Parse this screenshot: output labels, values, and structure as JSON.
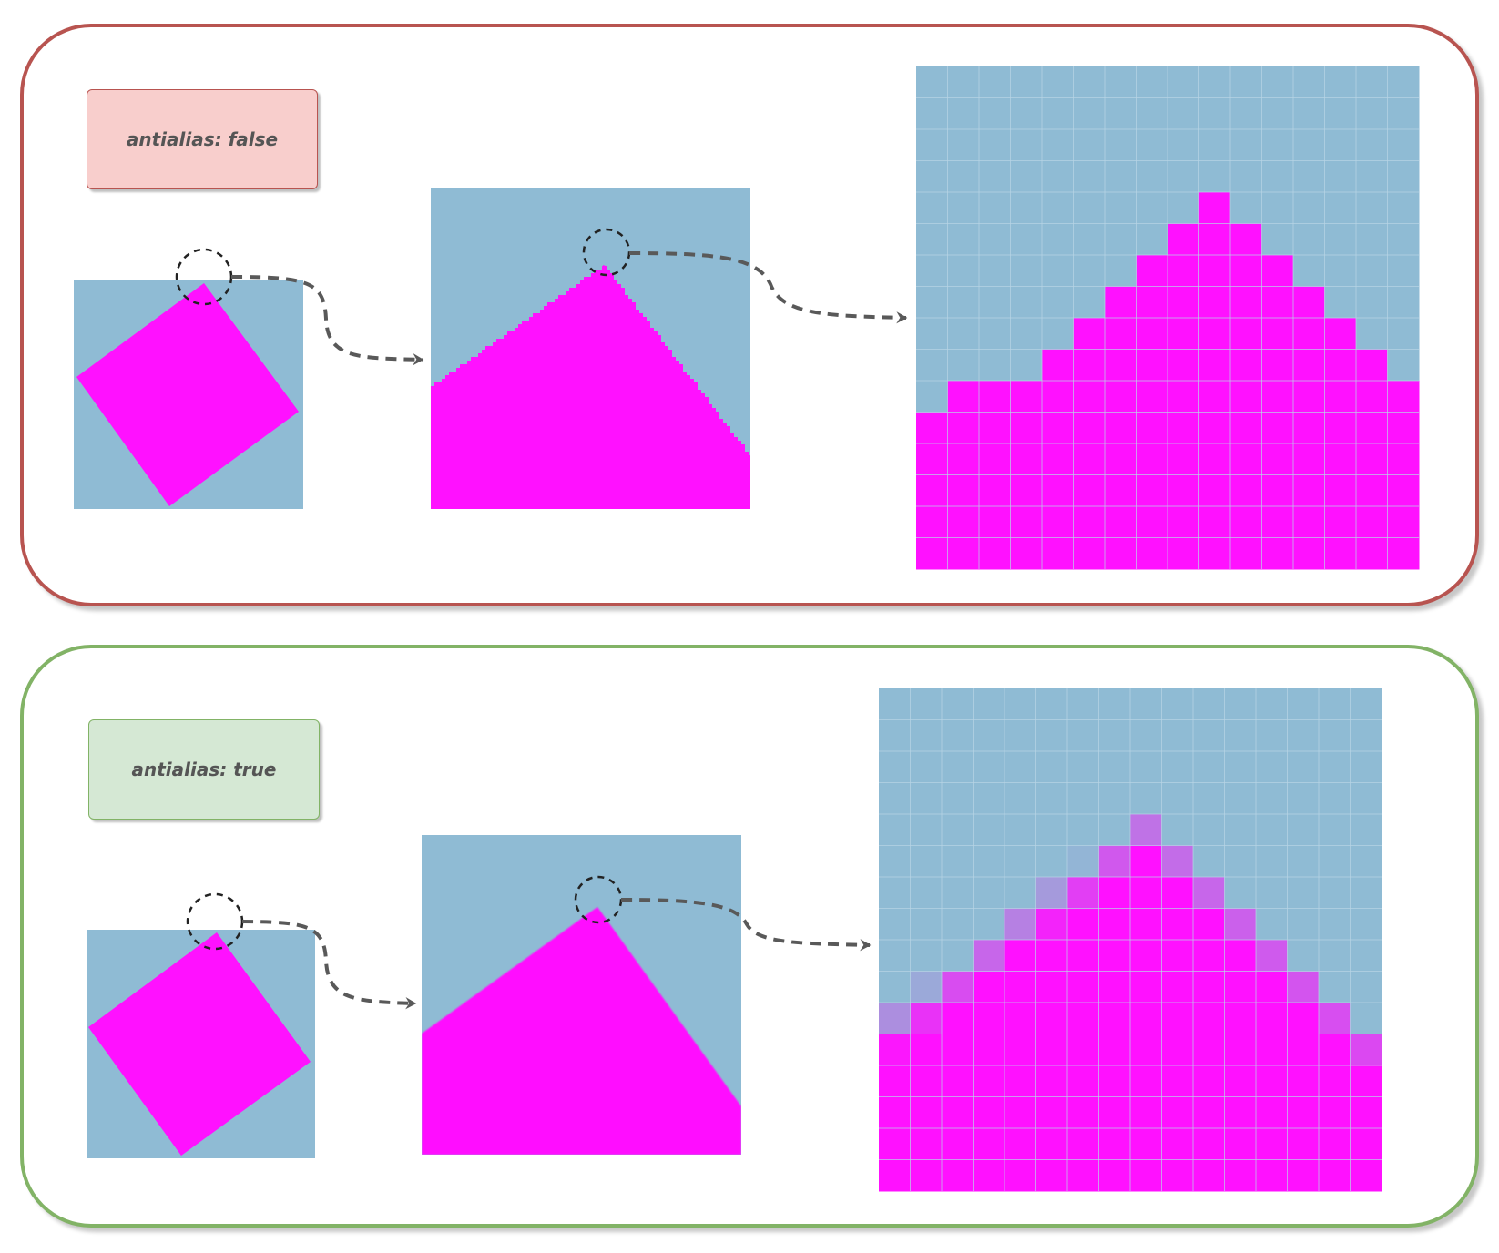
{
  "panels": [
    {
      "id": "no-antialias",
      "label": "antialias: false",
      "border_color": "#b85450",
      "label_fill": "#f8cecc"
    },
    {
      "id": "antialias",
      "label": "antialias: true",
      "border_color": "#82b366",
      "label_fill": "#d5e8d4"
    }
  ],
  "colors": {
    "background_pixel": "#8fbbd4",
    "shape": "#ff11ff",
    "arrow": "#595959",
    "pixel_grid": "#b8d4e6"
  },
  "icons": [
    "dashed-magnifier-circle",
    "dashed-curved-arrow"
  ]
}
